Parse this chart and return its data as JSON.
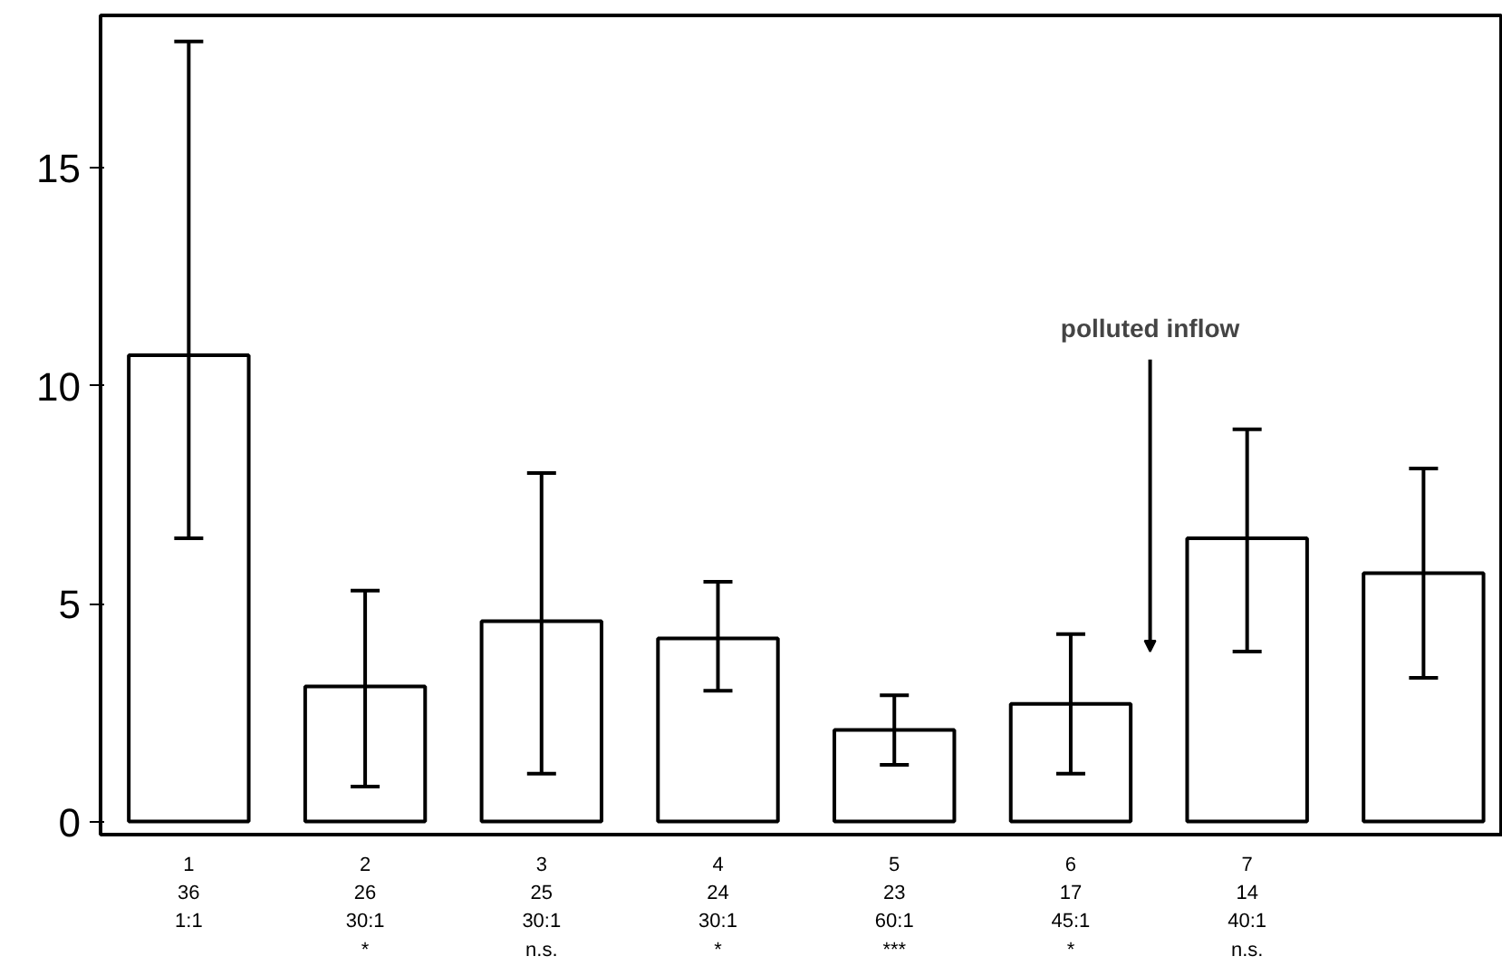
{
  "chart_data": {
    "type": "bar",
    "categories": [
      "1\n36\n1:1\n ",
      "2\n26\n30:1\n*",
      "3\n25\n30:1\nn.s.",
      "4\n24\n30:1\n*",
      "5\n23\n60:1\n***",
      "6\n17\n45:1\n*",
      "7\n14\n40:1\nn.s.",
      null
    ],
    "values": [
      10.7,
      3.1,
      4.6,
      4.2,
      2.1,
      2.7,
      6.5,
      5.7
    ],
    "errors": [
      [
        6.5,
        17.9
      ],
      [
        0.8,
        5.3
      ],
      [
        1.1,
        8.0
      ],
      [
        3.0,
        5.5
      ],
      [
        1.3,
        2.9
      ],
      [
        1.1,
        4.3
      ],
      [
        3.9,
        9.0
      ],
      [
        3.3,
        8.1
      ]
    ],
    "color": "#ffffff",
    "ylim": [
      -0.3,
      18.5
    ],
    "yticks": [
      0,
      5,
      10,
      15
    ],
    "grid": false,
    "annotations": [
      "polluted inflow"
    ]
  }
}
